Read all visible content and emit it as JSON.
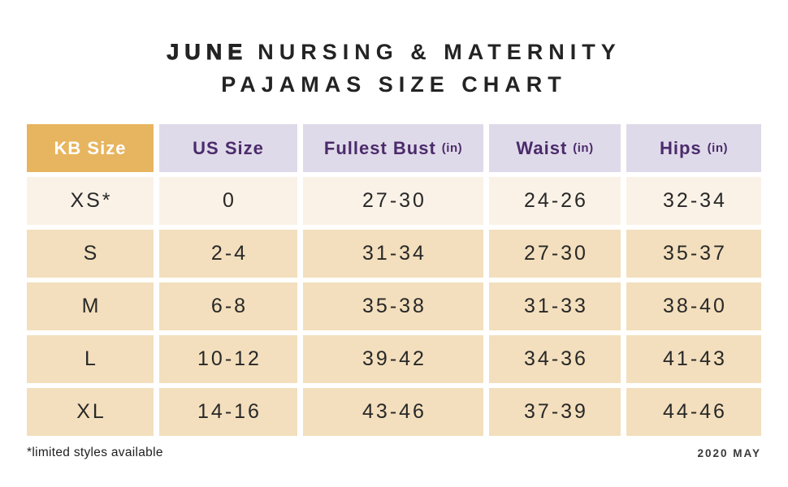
{
  "title": {
    "brand": "JUNE",
    "line1_rest": "NURSING & MATERNITY",
    "line2": "PAJAMAS SIZE CHART"
  },
  "table": {
    "header": [
      {
        "label": "KB Size",
        "unit": ""
      },
      {
        "label": "US Size",
        "unit": ""
      },
      {
        "label": "Fullest Bust",
        "unit": "(in)"
      },
      {
        "label": "Waist",
        "unit": "(in)"
      },
      {
        "label": "Hips",
        "unit": "(in)"
      }
    ]
  },
  "chart_data": {
    "type": "table",
    "title": "JUNE NURSING & MATERNITY PAJAMAS SIZE CHART",
    "columns": [
      "KB Size",
      "US Size",
      "Fullest Bust (in)",
      "Waist (in)",
      "Hips (in)"
    ],
    "rows": [
      [
        "XS*",
        "0",
        "27-30",
        "24-26",
        "32-34"
      ],
      [
        "S",
        "2-4",
        "31-34",
        "27-30",
        "35-37"
      ],
      [
        "M",
        "6-8",
        "35-38",
        "31-33",
        "38-40"
      ],
      [
        "L",
        "10-12",
        "39-42",
        "34-36",
        "41-43"
      ],
      [
        "XL",
        "14-16",
        "43-46",
        "37-39",
        "44-46"
      ]
    ],
    "footnote": "*limited styles available",
    "date": "2020 MAY"
  },
  "colors": {
    "header_gold": "#E7B55F",
    "header_lavender": "#DFDAE9",
    "header_text_purple": "#4B2B6B",
    "row_cream": "#FAF2E7",
    "row_tan": "#F3DFBD",
    "text_dark": "#282828",
    "background": "#FFFFFF"
  }
}
